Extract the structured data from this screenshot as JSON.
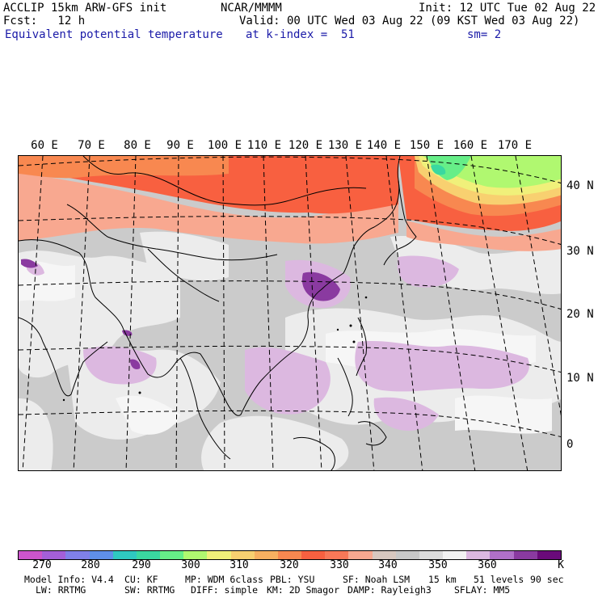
{
  "header": {
    "model": "ACCLIP 15km ARW-GFS init",
    "org": "NCAR/MMMM",
    "init": "Init: 12 UTC Tue 02 Aug 22",
    "fcst": "Fcst:   12 h",
    "valid": "Valid: 00 UTC Wed 03 Aug 22 (09 KST Wed 03 Aug 22)",
    "field": "Equivalent potential temperature",
    "level": "at k-index =  51",
    "smooth": "sm= 2"
  },
  "lon_labels": [
    "60 E",
    "70 E",
    "80 E",
    "90 E",
    "100 E",
    "110 E",
    "120 E",
    "130 E",
    "140 E",
    "150 E",
    "160 E",
    "170 E"
  ],
  "lat_labels": [
    "40 N",
    "30 N",
    "20 N",
    "10 N",
    "0"
  ],
  "colorbar": {
    "colors": [
      "#cc55cc",
      "#a45fd8",
      "#8080e8",
      "#5f8fe8",
      "#2fc8c0",
      "#3ad8a0",
      "#66ee88",
      "#b0f870",
      "#f0f07a",
      "#f8d070",
      "#f8b060",
      "#f88850",
      "#f86040",
      "#f87858",
      "#f8a890",
      "#d8c8c0",
      "#c8c8c8",
      "#dcdcdc",
      "#f2f2f2",
      "#dcb8e0",
      "#b070c8",
      "#8a3aa0",
      "#6a0a7a"
    ],
    "labels": [
      "270",
      "280",
      "290",
      "300",
      "310",
      "320",
      "330",
      "340",
      "350",
      "360"
    ],
    "unit": "K"
  },
  "footer": {
    "line1": [
      "Model Info: V4.4",
      "CU: KF",
      "MP: WDM 6class",
      "PBL: YSU",
      "SF: Noah LSM",
      "15 km",
      "51 levels",
      "90 sec"
    ],
    "line2": [
      "LW: RRTMG",
      "SW: RRTMG",
      "DIFF: simple",
      "KM: 2D Smagor",
      "DAMP: Rayleigh3",
      "SFLAY: MM5"
    ]
  }
}
